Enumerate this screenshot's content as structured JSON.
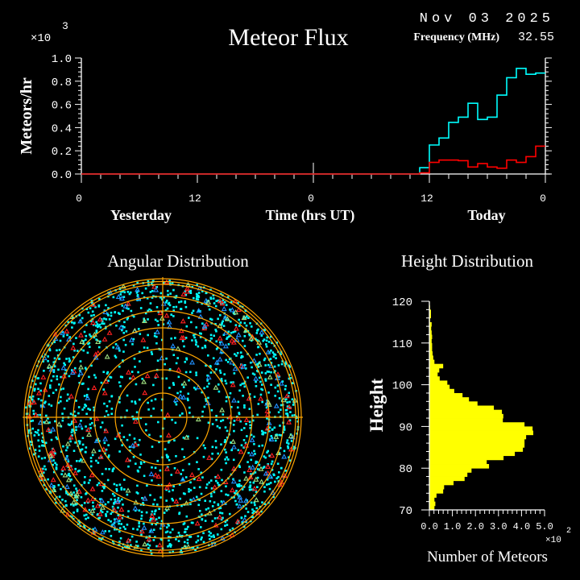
{
  "header": {
    "date": "Nov 03 2025",
    "frequency_label": "Frequency (MHz)",
    "frequency_value": "32.55"
  },
  "colors": {
    "background": "#000000",
    "axes": "#ffffff",
    "total_flux": "#00ffff",
    "secondary_flux": "#ff0000",
    "rings": "#ffa500",
    "height_bars": "#ffff00",
    "marker_cyan": "#00ffff",
    "marker_red": "#ff2020",
    "marker_blue": "#2090ff",
    "marker_green": "#a0e080"
  },
  "chart_data": [
    {
      "type": "line",
      "title": "Meteor Flux",
      "ylabel": "Meteors/hr",
      "y_multiplier": "×10",
      "y_multiplier_exp": "3",
      "xlabel": "Time (hrs UT)",
      "day_labels": [
        "Yesterday",
        "Today"
      ],
      "x_tick_labels": [
        "0",
        "12",
        "0",
        "12",
        "0"
      ],
      "y_tick_labels": [
        "0.0",
        "0.2",
        "0.4",
        "0.6",
        "0.8",
        "1.0"
      ],
      "xlim_hours": [
        0,
        48
      ],
      "ylim": [
        0,
        1.0
      ],
      "step": true,
      "series": [
        {
          "color": "#00ffff",
          "values": [
            0,
            0,
            0,
            0,
            0,
            0,
            0,
            0,
            0,
            0,
            0,
            0,
            0,
            0,
            0,
            0,
            0,
            0,
            0,
            0,
            0,
            0,
            0,
            0,
            0,
            0,
            0,
            0,
            0,
            0,
            0,
            0,
            0,
            0,
            0,
            0.054,
            0.25,
            0.31,
            0.445,
            0.49,
            0.61,
            0.47,
            0.49,
            0.68,
            0.83,
            0.91,
            0.86,
            0.87
          ]
        },
        {
          "color": "#ff0000",
          "values": [
            0,
            0,
            0,
            0,
            0,
            0,
            0,
            0,
            0,
            0,
            0,
            0,
            0,
            0,
            0,
            0,
            0,
            0,
            0,
            0,
            0,
            0,
            0,
            0,
            0,
            0,
            0,
            0,
            0,
            0,
            0,
            0,
            0,
            0,
            0,
            0.01,
            0.1,
            0.12,
            0.12,
            0.115,
            0.06,
            0.09,
            0.06,
            0.05,
            0.12,
            0.1,
            0.15,
            0.24
          ]
        }
      ],
      "marker_hour": 24
    },
    {
      "type": "scatter",
      "title": "Angular Distribution",
      "projection": "polar",
      "marker_series": [
        {
          "shape": "square",
          "color": "#00ffff"
        },
        {
          "shape": "triangle",
          "color": "#ff2020"
        },
        {
          "shape": "triangle",
          "color": "#2090ff"
        },
        {
          "shape": "triangle",
          "color": "#a0e080"
        }
      ]
    },
    {
      "type": "bar",
      "orientation": "horizontal",
      "title": "Height Distribution",
      "ylabel": "Height",
      "xlabel": "Number of Meteors",
      "x_multiplier": "×10",
      "x_multiplier_exp": "2",
      "x_tick_labels": [
        "0.0",
        "1.0",
        "2.0",
        "3.0",
        "4.0",
        "5.0"
      ],
      "y_tick_labels": [
        "70",
        "80",
        "90",
        "100",
        "110",
        "120"
      ],
      "xlim": [
        0,
        5.0
      ],
      "ylim": [
        70,
        120
      ],
      "bin_start": 70,
      "bin_width": 1,
      "values": [
        0.22,
        0.26,
        0.22,
        0.31,
        0.6,
        0.64,
        1.05,
        1.53,
        1.65,
        1.83,
        2.59,
        2.49,
        3.22,
        3.71,
        4.06,
        4.13,
        4.13,
        4.2,
        4.51,
        4.48,
        4.13,
        3.19,
        3.21,
        3.15,
        2.8,
        2.09,
        1.72,
        1.44,
        1.08,
        0.88,
        0.78,
        0.45,
        0.36,
        0.43,
        0.6,
        0.22,
        0.17,
        0.14,
        0.12,
        0.12,
        0.1,
        0.12,
        0.1,
        0.08,
        0.1,
        0.03,
        0.07,
        0.07,
        0.03,
        0.02
      ]
    }
  ]
}
